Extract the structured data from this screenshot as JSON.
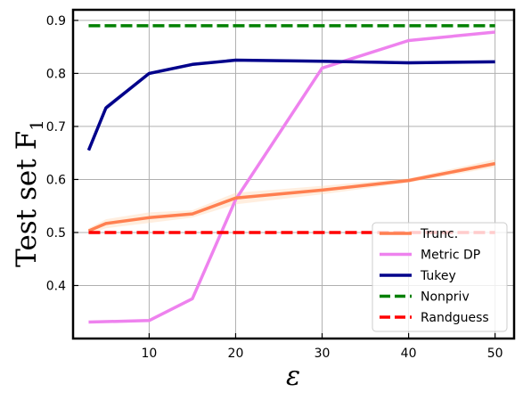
{
  "chart_data": {
    "type": "line",
    "title": "",
    "xlabel": "ε",
    "ylabel": "Test set F",
    "ylabel_subscript": "1",
    "xlim": [
      1.2,
      52.2
    ],
    "ylim": [
      0.3,
      0.92
    ],
    "xticks": [
      10,
      20,
      30,
      40,
      50
    ],
    "yticks": [
      0.4,
      0.5,
      0.6,
      0.7,
      0.8,
      0.9
    ],
    "ytick_labels": [
      "0.4",
      "0.5",
      "0.6",
      "0.7",
      "0.8",
      "0.9"
    ],
    "grid": true,
    "legend_position": "lower-right",
    "series": [
      {
        "name": "Trunc.",
        "color": "#FF7F50",
        "band_color": "#FFDAB9",
        "style": "solid",
        "x": [
          3,
          5,
          10,
          15,
          20,
          30,
          40,
          50
        ],
        "y": [
          0.503,
          0.517,
          0.528,
          0.535,
          0.565,
          0.58,
          0.598,
          0.63
        ],
        "y_lower": [
          0.497,
          0.508,
          0.518,
          0.528,
          0.553,
          0.572,
          0.594,
          0.623
        ],
        "y_upper": [
          0.508,
          0.525,
          0.538,
          0.542,
          0.575,
          0.588,
          0.602,
          0.638
        ]
      },
      {
        "name": "Metric DP",
        "color": "#EE82EE",
        "style": "solid",
        "x": [
          3,
          10,
          15,
          20,
          30,
          40,
          50
        ],
        "y": [
          0.331,
          0.334,
          0.375,
          0.562,
          0.81,
          0.862,
          0.878
        ]
      },
      {
        "name": "Tukey",
        "color": "#00008B",
        "band_color": "#8888CC",
        "style": "solid",
        "x": [
          3,
          5,
          10,
          15,
          20,
          30,
          40,
          50
        ],
        "y": [
          0.655,
          0.735,
          0.8,
          0.817,
          0.825,
          0.823,
          0.82,
          0.822
        ],
        "y_lower": [
          0.652,
          0.73,
          0.797,
          0.814,
          0.823,
          0.821,
          0.817,
          0.819
        ],
        "y_upper": [
          0.658,
          0.74,
          0.803,
          0.82,
          0.827,
          0.825,
          0.823,
          0.825
        ]
      },
      {
        "name": "Nonpriv",
        "color": "#008000",
        "style": "dashed",
        "x": [
          3,
          50
        ],
        "y": [
          0.89,
          0.89
        ]
      },
      {
        "name": "Randguess",
        "color": "#FF0000",
        "style": "dashed",
        "x": [
          3,
          50
        ],
        "y": [
          0.5,
          0.5
        ]
      }
    ]
  }
}
